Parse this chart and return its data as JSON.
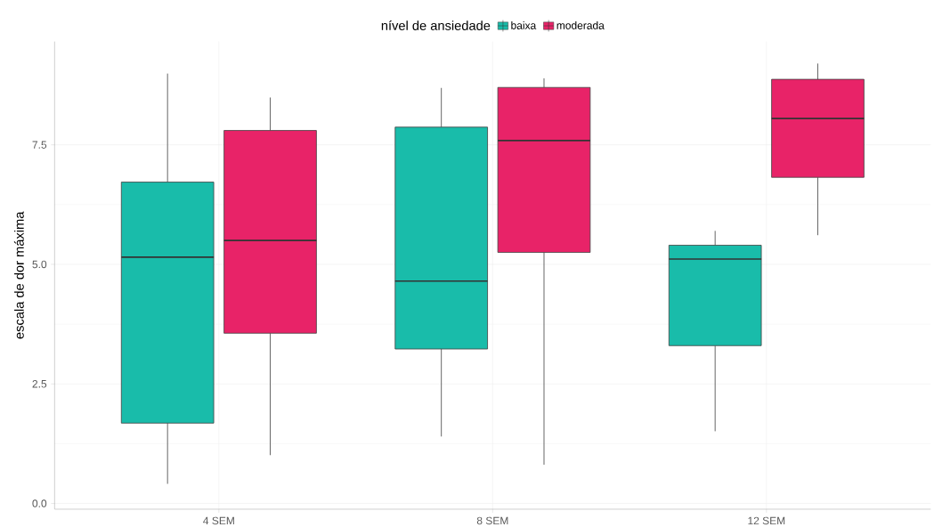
{
  "chart_data": {
    "type": "box",
    "ylabel": "escala de dor máxima",
    "legend_title": "nível de ansiedade",
    "legend": "top",
    "grid": true,
    "categories": [
      "4 SEM",
      "8 SEM",
      "12 SEM"
    ],
    "ylim": [
      -0.12,
      9.66
    ],
    "yticks": [
      {
        "value": 0,
        "label": "0.0"
      },
      2.5,
      {
        "value": 5,
        "label": "5.0"
      },
      7.5
    ],
    "series": [
      {
        "name": "baixa",
        "color": "#19bcaa",
        "boxes": [
          {
            "low": 0.41,
            "q1": 1.68,
            "median": 5.15,
            "q3": 6.72,
            "high": 8.99
          },
          {
            "low": 1.4,
            "q1": 3.23,
            "median": 4.65,
            "q3": 7.87,
            "high": 8.69
          },
          {
            "low": 1.51,
            "q1": 3.3,
            "median": 5.11,
            "q3": 5.4,
            "high": 5.7
          }
        ]
      },
      {
        "name": "moderada",
        "color": "#e82368",
        "boxes": [
          {
            "low": 1.01,
            "q1": 3.56,
            "median": 5.5,
            "q3": 7.8,
            "high": 8.49
          },
          {
            "low": 0.81,
            "q1": 5.25,
            "median": 7.59,
            "q3": 8.7,
            "high": 8.89
          },
          {
            "low": 5.61,
            "q1": 6.82,
            "median": 8.05,
            "q3": 8.87,
            "high": 9.2
          }
        ]
      }
    ]
  }
}
